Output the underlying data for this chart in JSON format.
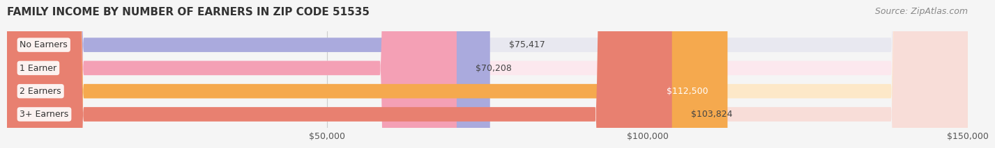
{
  "title": "FAMILY INCOME BY NUMBER OF EARNERS IN ZIP CODE 51535",
  "source": "Source: ZipAtlas.com",
  "categories": [
    "No Earners",
    "1 Earner",
    "2 Earners",
    "3+ Earners"
  ],
  "values": [
    75417,
    70208,
    112500,
    103824
  ],
  "labels": [
    "$75,417",
    "$70,208",
    "$112,500",
    "$103,824"
  ],
  "bar_colors": [
    "#aaaadd",
    "#f4a0b5",
    "#f5a94e",
    "#e88070"
  ],
  "bar_bg_colors": [
    "#e8e8f0",
    "#fce8ee",
    "#fde8c8",
    "#f8ddd8"
  ],
  "label_colors": [
    "#444444",
    "#444444",
    "#ffffff",
    "#444444"
  ],
  "xlim": [
    0,
    150000
  ],
  "xticks": [
    50000,
    100000,
    150000
  ],
  "xticklabels": [
    "$50,000",
    "$100,000",
    "$150,000"
  ],
  "bg_color": "#f5f5f5",
  "title_fontsize": 11,
  "source_fontsize": 9,
  "bar_label_fontsize": 9,
  "category_fontsize": 9,
  "tick_fontsize": 9
}
